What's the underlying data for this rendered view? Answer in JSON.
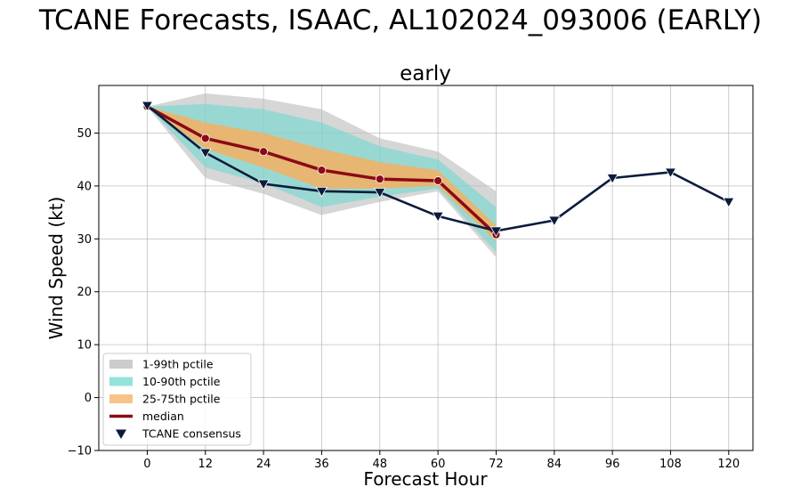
{
  "chart_data": {
    "type": "line",
    "suptitle": "TCANE Forecasts, ISAAC, AL102024_093006 (EARLY)",
    "title": "early",
    "xlabel": "Forecast Hour",
    "ylabel": "Wind Speed (kt)",
    "xlim": [
      -10,
      125
    ],
    "ylim": [
      -10,
      59
    ],
    "xticks": [
      0,
      12,
      24,
      36,
      48,
      60,
      72,
      84,
      96,
      108,
      120
    ],
    "yticks": [
      -10,
      0,
      10,
      20,
      30,
      40,
      50
    ],
    "grid": true,
    "legend_position": "lower-left",
    "bands": [
      {
        "name": "1-99th pctile",
        "color": "#bbbbbb",
        "opacity": 0.6,
        "x": [
          0,
          12,
          24,
          36,
          48,
          60,
          72
        ],
        "lower": [
          55,
          41.5,
          38.5,
          34.5,
          37,
          39,
          26.5
        ],
        "upper": [
          55,
          57.5,
          56.5,
          54.5,
          49,
          46.5,
          39
        ]
      },
      {
        "name": "10-90th pctile",
        "color": "#6fd9cf",
        "opacity": 0.6,
        "x": [
          0,
          12,
          24,
          36,
          48,
          60,
          72
        ],
        "lower": [
          55,
          43.5,
          40.5,
          36,
          38,
          39.5,
          27.5
        ],
        "upper": [
          55,
          55.5,
          54.5,
          52,
          47.5,
          45,
          36
        ]
      },
      {
        "name": "25-75th pctile",
        "color": "#f3b061",
        "opacity": 0.85,
        "x": [
          0,
          12,
          24,
          36,
          48,
          60,
          72
        ],
        "lower": [
          55,
          47,
          43.5,
          39.5,
          39.5,
          40,
          29.5
        ],
        "upper": [
          55,
          52,
          50,
          47,
          44.5,
          43,
          32.5
        ]
      }
    ],
    "series": [
      {
        "name": "median",
        "color": "#8b0a16",
        "marker": "circle",
        "x": [
          0,
          12,
          24,
          36,
          48,
          60,
          72
        ],
        "values": [
          55,
          49,
          46.5,
          43,
          41.3,
          41,
          30.8
        ]
      },
      {
        "name": "TCANE consensus",
        "color": "#0b1b3c",
        "marker": "triangle-down",
        "x": [
          0,
          12,
          24,
          36,
          48,
          60,
          72,
          84,
          96,
          108,
          120
        ],
        "values": [
          55.2,
          46.3,
          40.4,
          39,
          38.8,
          34.3,
          31.5,
          33.5,
          41.5,
          42.6,
          37
        ]
      }
    ],
    "legend": [
      {
        "label": "1-99th pctile",
        "kind": "patch",
        "color": "#bbbbbb"
      },
      {
        "label": "10-90th pctile",
        "kind": "patch",
        "color": "#6fd9cf"
      },
      {
        "label": "25-75th pctile",
        "kind": "patch",
        "color": "#f3b061"
      },
      {
        "label": "median",
        "kind": "line",
        "color": "#8b0a16"
      },
      {
        "label": "TCANE consensus",
        "kind": "marker",
        "color": "#0b1b3c"
      }
    ]
  }
}
